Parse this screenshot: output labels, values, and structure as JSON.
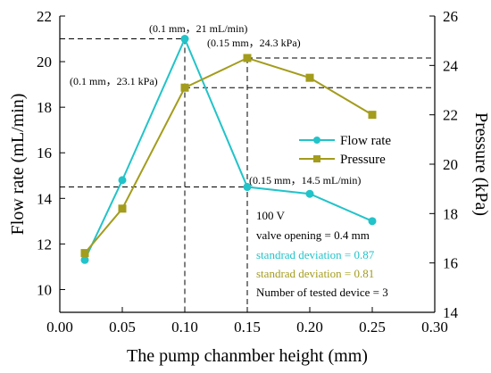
{
  "chart_data": {
    "type": "line",
    "x": [
      0.02,
      0.05,
      0.1,
      0.15,
      0.2,
      0.25
    ],
    "xlabel": "The pump chanmber height (mm)",
    "ylabel_left": "Flow rate (mL/min)",
    "ylabel_right": "Pressure (kPa)",
    "xlim": [
      0.0,
      0.3
    ],
    "ylim_left": [
      9,
      22
    ],
    "ylim_right": [
      14,
      26
    ],
    "x_ticks": [
      "0.00",
      "0.05",
      "0.10",
      "0.15",
      "0.20",
      "0.25",
      "0.30"
    ],
    "y_ticks_left": [
      "10",
      "12",
      "14",
      "16",
      "18",
      "20",
      "22"
    ],
    "y_ticks_right": [
      "14",
      "16",
      "18",
      "20",
      "22",
      "24",
      "26"
    ],
    "series": [
      {
        "name": "Flow rate",
        "axis": "left",
        "color": "#22c3c9",
        "marker": "circle",
        "values": [
          11.3,
          14.8,
          21.0,
          14.5,
          14.2,
          13.0
        ]
      },
      {
        "name": "Pressure",
        "axis": "right",
        "color": "#a39c1c",
        "marker": "square",
        "values": [
          16.4,
          18.2,
          23.1,
          24.3,
          23.5,
          22.0
        ]
      }
    ],
    "annotations": [
      {
        "text": "(0.1 mm，21 mL/min)"
      },
      {
        "text": "(0.15 mm，24.3 kPa)"
      },
      {
        "text": "(0.1 mm，23.1 kPa)"
      },
      {
        "text": "(0.15 mm，14.5 mL/min)"
      }
    ],
    "info": {
      "voltage": "100 V",
      "valve": "valve opening = 0.4 mm",
      "sd_flow": "standrad deviation = 0.87",
      "sd_pressure": "standrad deviation = 0.81",
      "devices": "Number of tested device = 3"
    },
    "legend_position": "center-right",
    "grid": false
  }
}
